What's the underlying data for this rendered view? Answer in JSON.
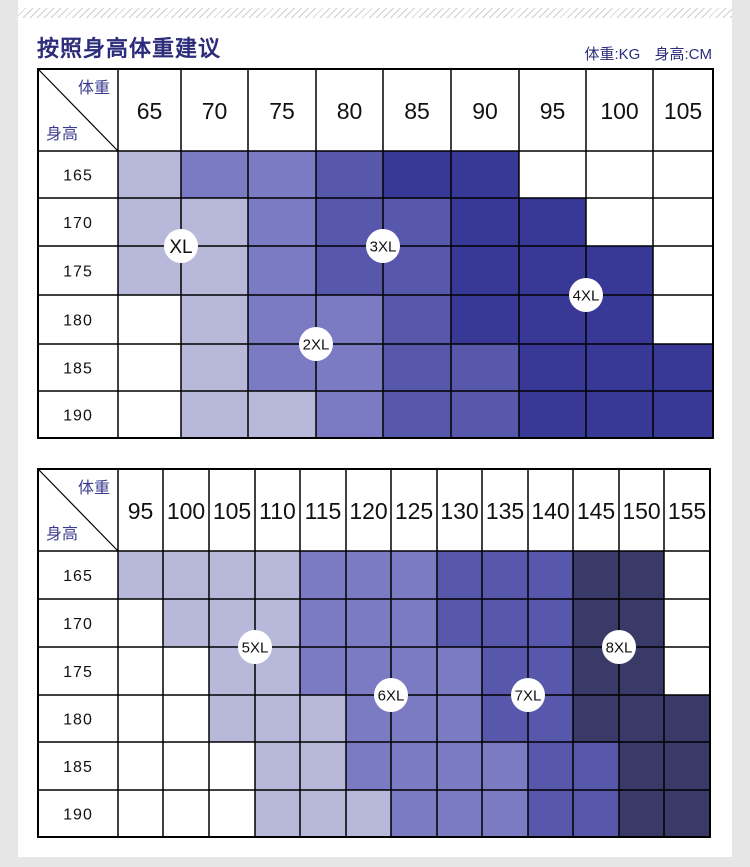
{
  "header": {
    "title": "按照身高体重建议",
    "weight_unit": "体重:KG",
    "height_unit": "身高:CM"
  },
  "colors": {
    "l1": "#b8b8da",
    "l2": "#7b7bc4",
    "l3": "#5757ab",
    "l4": "#383896",
    "l5": "#3a3a68",
    "white": "#ffffff",
    "accent": "#2c2c7a"
  },
  "tables": [
    {
      "corner_weight": "体重",
      "corner_height": "身高",
      "weights": [
        "65",
        "70",
        "75",
        "80",
        "85",
        "90",
        "95",
        "100",
        "105"
      ],
      "heights": [
        "165",
        "170",
        "175",
        "180",
        "185",
        "190"
      ],
      "cells": [
        [
          "l1",
          "l2",
          "l2",
          "l3",
          "l4",
          "l4",
          "w",
          "w",
          "w"
        ],
        [
          "l1",
          "l1",
          "l2",
          "l3",
          "l3",
          "l4",
          "l4",
          "w",
          "w"
        ],
        [
          "l1",
          "l1",
          "l2",
          "l3",
          "l3",
          "l4",
          "l4",
          "l4",
          "w"
        ],
        [
          "w",
          "l1",
          "l2",
          "l2",
          "l3",
          "l4",
          "l4",
          "l4",
          "w"
        ],
        [
          "w",
          "l1",
          "l2",
          "l2",
          "l3",
          "l3",
          "l4",
          "l4",
          "l4"
        ],
        [
          "w",
          "l1",
          "l1",
          "l2",
          "l3",
          "l3",
          "l4",
          "l4",
          "l4"
        ]
      ],
      "size_labels": [
        {
          "label": "XL",
          "row": 2,
          "col": 1
        },
        {
          "label": "3XL",
          "row": 2,
          "col": 4
        },
        {
          "label": "4XL",
          "row": 3,
          "col": 7
        },
        {
          "label": "2XL",
          "row": 4,
          "col": 3
        }
      ]
    },
    {
      "corner_weight": "体重",
      "corner_height": "身高",
      "weights": [
        "95",
        "100",
        "105",
        "110",
        "115",
        "120",
        "125",
        "130",
        "135",
        "140",
        "145",
        "150",
        "155"
      ],
      "heights": [
        "165",
        "170",
        "175",
        "180",
        "185",
        "190"
      ],
      "cells": [
        [
          "l1",
          "l1",
          "l1",
          "l1",
          "l2",
          "l2",
          "l2",
          "l3",
          "l3",
          "l3",
          "l5",
          "l5",
          "w"
        ],
        [
          "w",
          "l1",
          "l1",
          "l1",
          "l2",
          "l2",
          "l2",
          "l3",
          "l3",
          "l3",
          "l5",
          "l5",
          "w"
        ],
        [
          "w",
          "w",
          "l1",
          "l1",
          "l2",
          "l2",
          "l2",
          "l2",
          "l3",
          "l3",
          "l5",
          "l5",
          "w"
        ],
        [
          "w",
          "w",
          "l1",
          "l1",
          "l1",
          "l2",
          "l2",
          "l2",
          "l3",
          "l3",
          "l5",
          "l5",
          "l5"
        ],
        [
          "w",
          "w",
          "w",
          "l1",
          "l1",
          "l2",
          "l2",
          "l2",
          "l2",
          "l3",
          "l3",
          "l5",
          "l5"
        ],
        [
          "w",
          "w",
          "w",
          "l1",
          "l1",
          "l1",
          "l2",
          "l2",
          "l2",
          "l3",
          "l3",
          "l5",
          "l5"
        ]
      ],
      "size_labels": [
        {
          "label": "5XL",
          "row": 2,
          "col": 3
        },
        {
          "label": "8XL",
          "row": 2,
          "col": 11
        },
        {
          "label": "6XL",
          "row": 3,
          "col": 6
        },
        {
          "label": "7XL",
          "row": 3,
          "col": 9
        }
      ]
    }
  ]
}
